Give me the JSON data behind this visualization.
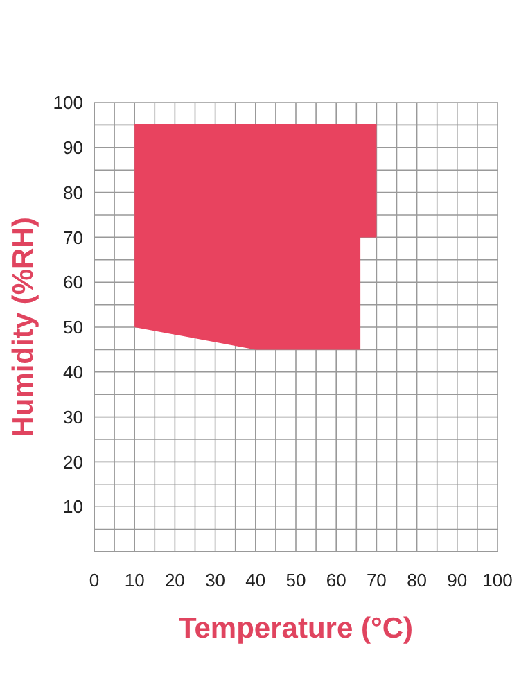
{
  "chart_data": {
    "type": "line",
    "xlabel": "Temperature (°C)",
    "ylabel": "Humidity (%RH)",
    "xlim": [
      0,
      100
    ],
    "ylim": [
      0,
      100
    ],
    "xticks": [
      0,
      {
        "value": 5,
        "label": null
      },
      10,
      {
        "value": 15,
        "label": null
      },
      20,
      {
        "value": 25,
        "label": null
      },
      30,
      {
        "value": 35,
        "label": null
      },
      40,
      {
        "value": 45,
        "label": null
      },
      50,
      {
        "value": 55,
        "label": null
      },
      60,
      {
        "value": 65,
        "label": null
      },
      70,
      {
        "value": 75,
        "label": null
      },
      80,
      {
        "value": 85,
        "label": null
      },
      90,
      {
        "value": 95,
        "label": null
      },
      100
    ],
    "yticks": [
      {
        "value": 0,
        "label": null
      },
      {
        "value": 5,
        "label": null
      },
      10,
      {
        "value": 15,
        "label": null
      },
      20,
      {
        "value": 25,
        "label": null
      },
      30,
      {
        "value": 35,
        "label": null
      },
      40,
      {
        "value": 45,
        "label": null
      },
      50,
      {
        "value": 55,
        "label": null
      },
      60,
      {
        "value": 65,
        "label": null
      },
      70,
      {
        "value": 75,
        "label": null
      },
      80,
      {
        "value": 85,
        "label": null
      },
      90,
      {
        "value": 95,
        "label": null
      },
      100
    ],
    "grid": true,
    "series": [
      {
        "color": "#e8435f",
        "x": [
          10,
          40,
          66,
          66,
          70
        ],
        "values": [
          95,
          95,
          95,
          95,
          95
        ],
        "lower": [
          50,
          45,
          45,
          70,
          70
        ],
        "upper": [
          95,
          95,
          95,
          95,
          95
        ]
      }
    ]
  }
}
